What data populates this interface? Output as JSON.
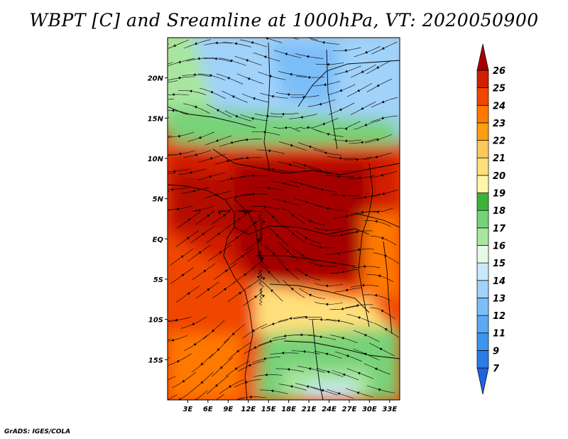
{
  "title": "WBPT [C] and Sreamline at 1000hPa, VT: 2020050900",
  "credit": "GrADS: IGES/COLA",
  "lat_labels": [
    "20N",
    "15N",
    "10N",
    "5N",
    "EQ",
    "5S",
    "10S",
    "15S"
  ],
  "lat_values": [
    20,
    15,
    10,
    5,
    0,
    -5,
    -10,
    -15
  ],
  "lon_labels": [
    "3E",
    "6E",
    "9E",
    "12E",
    "15E",
    "18E",
    "21E",
    "24E",
    "27E",
    "30E",
    "33E"
  ],
  "lon_values": [
    3,
    6,
    9,
    12,
    15,
    18,
    21,
    24,
    27,
    30,
    33
  ],
  "map_extent": {
    "lon_min": 0,
    "lon_max": 34.5,
    "lat_min": -20,
    "lat_max": 25
  },
  "colorbar": {
    "levels": [
      "7",
      "9",
      "11",
      "12",
      "13",
      "14",
      "15",
      "16",
      "17",
      "18",
      "19",
      "20",
      "21",
      "22",
      "23",
      "24",
      "25",
      "26"
    ],
    "colors": [
      "#1e64dc",
      "#2c7ce6",
      "#3c96f0",
      "#5aaaf5",
      "#7cbef8",
      "#a0d2fa",
      "#c8e8fc",
      "#e6f8e6",
      "#a8e6a0",
      "#78d278",
      "#3cb43c",
      "#fff5a8",
      "#ffe07c",
      "#ffc85a",
      "#ff9e10",
      "#ff7800",
      "#f04600",
      "#d21e00",
      "#a50000"
    ]
  }
}
